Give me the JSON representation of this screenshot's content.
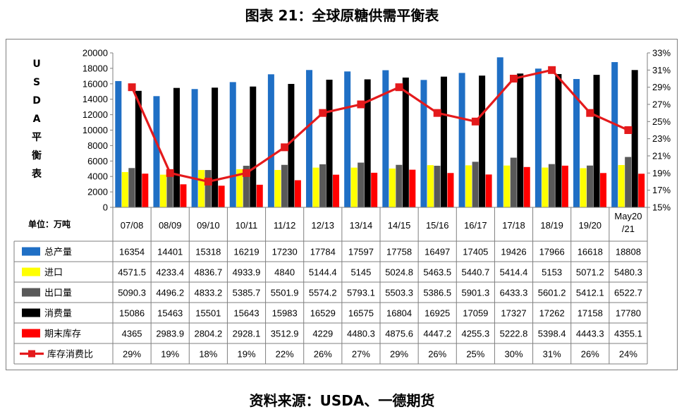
{
  "title": "图表 21：全球原糖供需平衡表",
  "source": "资料来源：USDA、一德期货",
  "y_axis_label_chars": [
    "U",
    "S",
    "D",
    "A",
    "平",
    "衡",
    "表"
  ],
  "unit_label": "单位：万吨",
  "chart_data": {
    "type": "bar",
    "categories": [
      "07/08",
      "08/09",
      "09/10",
      "10/11",
      "11/12",
      "12/13",
      "13/14",
      "14/15",
      "15/16",
      "16/17",
      "17/18",
      "18/19",
      "19/20",
      "May20/21"
    ],
    "category_lines": [
      [
        "07/08"
      ],
      [
        "08/09"
      ],
      [
        "09/10"
      ],
      [
        "10/11"
      ],
      [
        "11/12"
      ],
      [
        "12/13"
      ],
      [
        "13/14"
      ],
      [
        "14/15"
      ],
      [
        "15/16"
      ],
      [
        "16/17"
      ],
      [
        "17/18"
      ],
      [
        "18/19"
      ],
      [
        "19/20"
      ],
      [
        "May20",
        "/21"
      ]
    ],
    "ylim": [
      0,
      20000
    ],
    "y_ticks": [
      "0",
      "2000",
      "4000",
      "6000",
      "8000",
      "10000",
      "12000",
      "14000",
      "16000",
      "18000",
      "20000"
    ],
    "y2lim": [
      15,
      33
    ],
    "y2_ticks": [
      "15%",
      "17%",
      "19%",
      "21%",
      "23%",
      "25%",
      "27%",
      "29%",
      "31%",
      "33%"
    ],
    "series": [
      {
        "name": "总产量",
        "type": "bar",
        "color": "#1f6fc5",
        "values": [
          16354,
          14401,
          15318,
          16219,
          17230,
          17784,
          17597,
          17758,
          16497,
          17405,
          19426,
          17966,
          16618,
          18808
        ],
        "labels": [
          "16354",
          "14401",
          "15318",
          "16219",
          "17230",
          "17784",
          "17597",
          "17758",
          "16497",
          "17405",
          "19426",
          "17966",
          "16618",
          "18808"
        ]
      },
      {
        "name": "进口",
        "type": "bar",
        "color": "#ffff00",
        "values": [
          4571.5,
          4233.4,
          4836.7,
          4933.9,
          4840,
          5144.4,
          5145,
          5024.8,
          5463.5,
          5440.7,
          5414.4,
          5153,
          5071.2,
          5480.3
        ],
        "labels": [
          "4571.5",
          "4233.4",
          "4836.7",
          "4933.9",
          "4840",
          "5144.4",
          "5145",
          "5024.8",
          "5463.5",
          "5440.7",
          "5414.4",
          "5153",
          "5071.2",
          "5480.3"
        ]
      },
      {
        "name": "出口量",
        "type": "bar",
        "color": "#595959",
        "values": [
          5090.3,
          4496.2,
          4833.2,
          5385.7,
          5501.9,
          5574.2,
          5793.1,
          5503.3,
          5386.5,
          5901.3,
          6433.3,
          5601.2,
          5412.1,
          6522.7
        ],
        "labels": [
          "5090.3",
          "4496.2",
          "4833.2",
          "5385.7",
          "5501.9",
          "5574.2",
          "5793.1",
          "5503.3",
          "5386.5",
          "5901.3",
          "6433.3",
          "5601.2",
          "5412.1",
          "6522.7"
        ]
      },
      {
        "name": "消费量",
        "type": "bar",
        "color": "#000000",
        "values": [
          15086,
          15463,
          15501,
          15643,
          15983,
          16529,
          16575,
          16804,
          16925,
          17059,
          17327,
          17262,
          17158,
          17780
        ],
        "labels": [
          "15086",
          "15463",
          "15501",
          "15643",
          "15983",
          "16529",
          "16575",
          "16804",
          "16925",
          "17059",
          "17327",
          "17262",
          "17158",
          "17780"
        ]
      },
      {
        "name": "期末库存",
        "type": "bar",
        "color": "#ff0000",
        "values": [
          4365,
          2983.9,
          2804.2,
          2928.1,
          3512.9,
          4229,
          4480.3,
          4875.6,
          4447.2,
          4255.3,
          5222.8,
          5398.4,
          4443.3,
          4355.1
        ],
        "labels": [
          "4365",
          "2983.9",
          "2804.2",
          "2928.1",
          "3512.9",
          "4229",
          "4480.3",
          "4875.6",
          "4447.2",
          "4255.3",
          "5222.8",
          "5398.4",
          "4443.3",
          "4355.1"
        ]
      },
      {
        "name": "库存消费比",
        "type": "line",
        "axis": "right",
        "color": "#e41a1c",
        "values": [
          29,
          19,
          18,
          19,
          22,
          26,
          27,
          29,
          26,
          25,
          30,
          31,
          26,
          24
        ],
        "labels": [
          "29%",
          "19%",
          "18%",
          "19%",
          "22%",
          "26%",
          "27%",
          "29%",
          "26%",
          "25%",
          "30%",
          "31%",
          "26%",
          "24%"
        ]
      }
    ]
  }
}
